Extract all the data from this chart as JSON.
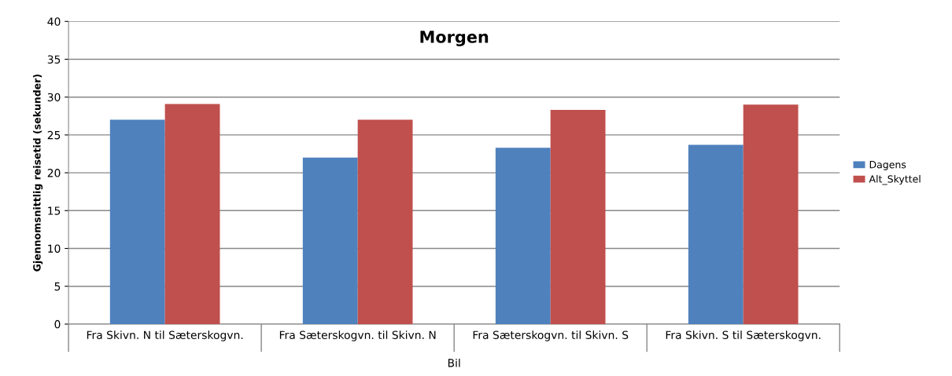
{
  "chart_data": {
    "type": "bar",
    "title": "Morgen",
    "ylabel": "Gjennomsnittlig reisetid (sekunder)",
    "xlabel": "Bil",
    "categories": [
      "Fra Skivn. N til Sæterskogvn.",
      "Fra Sæterskogvn. til Skivn. N",
      "Fra Sæterskogvn. til Skivn. S",
      "Fra Skivn. S til Sæterskogvn."
    ],
    "series": [
      {
        "name": "Dagens",
        "color": "#4f81bd",
        "values": [
          27.0,
          22.0,
          23.3,
          23.7
        ]
      },
      {
        "name": "Alt_Skyttel",
        "color": "#c0504d",
        "values": [
          29.1,
          27.0,
          28.3,
          29.0
        ]
      }
    ],
    "ylim": [
      0,
      40
    ],
    "yticks": [
      0,
      5,
      10,
      15,
      20,
      25,
      30,
      35,
      40
    ],
    "grid": "y",
    "legend": "right"
  }
}
